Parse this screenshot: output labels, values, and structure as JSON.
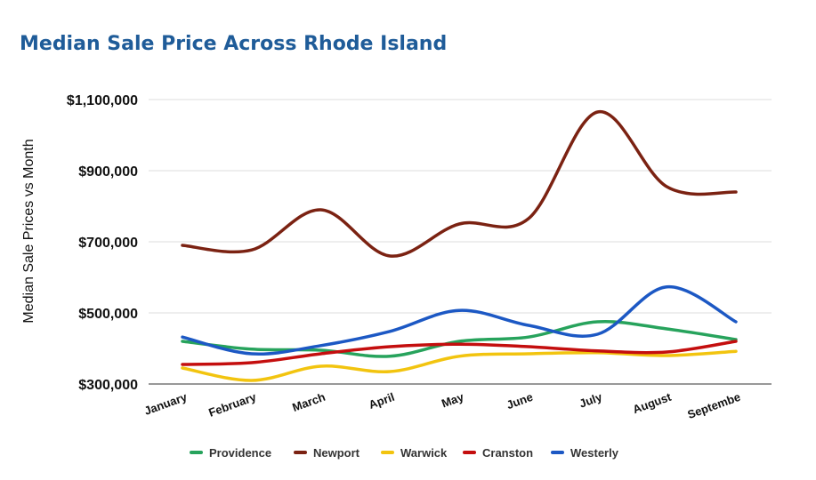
{
  "chart_data": {
    "type": "line",
    "title": "Median Sale Price Across Rhode Island",
    "xlabel": "",
    "ylabel": "Median Sale Prices vs Month",
    "categories": [
      "January",
      "February",
      "March",
      "April",
      "May",
      "June",
      "July",
      "August",
      "Septembe"
    ],
    "ylim": [
      300000,
      1100000
    ],
    "yticks": [
      300000,
      500000,
      700000,
      900000,
      1100000
    ],
    "ytick_labels": [
      "$300,000",
      "$500,000",
      "$700,000",
      "$900,000",
      "$1,100,000"
    ],
    "grid": true,
    "legend_position": "bottom",
    "series": [
      {
        "name": "Providence",
        "color": "#27a35c",
        "values": [
          420000,
          398000,
          395000,
          378000,
          420000,
          432000,
          475000,
          455000,
          425000
        ]
      },
      {
        "name": "Newport",
        "color": "#7b2212",
        "values": [
          690000,
          677000,
          790000,
          660000,
          750000,
          765000,
          1065000,
          855000,
          840000
        ]
      },
      {
        "name": "Warwick",
        "color": "#f2c40f",
        "values": [
          345000,
          310000,
          350000,
          335000,
          378000,
          385000,
          388000,
          380000,
          392000
        ]
      },
      {
        "name": "Cranston",
        "color": "#c40e0e",
        "values": [
          355000,
          360000,
          385000,
          405000,
          412000,
          405000,
          393000,
          390000,
          420000
        ]
      },
      {
        "name": "Westerly",
        "color": "#1c58c4",
        "values": [
          432000,
          385000,
          408000,
          448000,
          507000,
          465000,
          440000,
          573000,
          475000
        ]
      }
    ]
  }
}
